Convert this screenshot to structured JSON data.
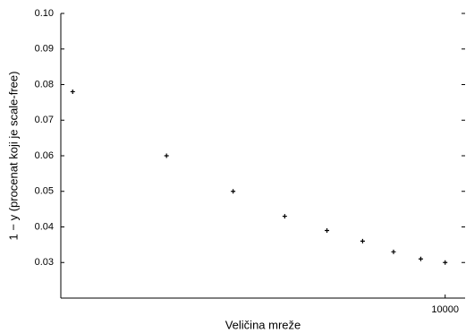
{
  "chart_data": {
    "type": "scatter",
    "x_label": "Veličina mreže",
    "y_label": "1 − y (procenat koji je scale-free)",
    "x": [
      2000,
      3000,
      4000,
      5000,
      6000,
      7000,
      8000,
      9000,
      10000
    ],
    "values": [
      0.078,
      0.06,
      0.05,
      0.043,
      0.039,
      0.036,
      0.033,
      0.031,
      0.03
    ],
    "color": "#000000",
    "xscale": "log",
    "xlim": [
      1900,
      10900
    ],
    "xticks": [
      10000
    ],
    "ylim": [
      0.02,
      0.1
    ],
    "yticks": [
      0.03,
      0.04,
      0.05,
      0.06,
      0.07,
      0.08,
      0.09,
      {
        "value": 0.1,
        "label": "0.10"
      }
    ]
  }
}
